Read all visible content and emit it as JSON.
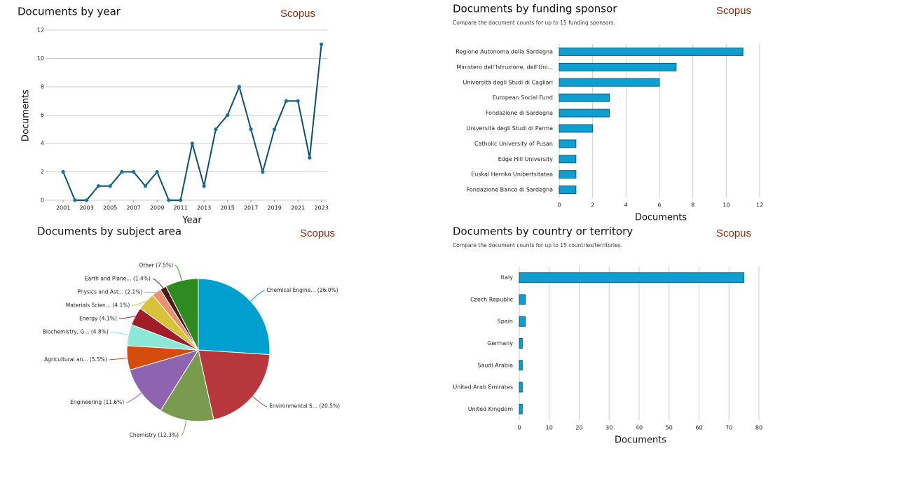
{
  "chart_data": [
    {
      "type": "line",
      "title": "Documents by year",
      "brand": "Scopus",
      "x": [
        2001,
        2002,
        2003,
        2004,
        2005,
        2006,
        2007,
        2008,
        2009,
        2010,
        2011,
        2012,
        2013,
        2014,
        2015,
        2016,
        2017,
        2018,
        2019,
        2020,
        2021,
        2022,
        2023
      ],
      "values": [
        2,
        0,
        0,
        1,
        1,
        2,
        2,
        1,
        2,
        0,
        0,
        4,
        1,
        5,
        6,
        8,
        5,
        2,
        5,
        7,
        7,
        3,
        11
      ],
      "color": "#0b4f72",
      "xlabel": "Year",
      "ylabel": "Documents",
      "xlim": [
        1999.5,
        2023.5
      ],
      "xticks": [
        2001,
        2003,
        2005,
        2007,
        2009,
        2011,
        2013,
        2015,
        2017,
        2019,
        2021,
        2023
      ],
      "ylim": [
        0,
        12
      ],
      "yticks": [
        0,
        2,
        4,
        6,
        8,
        10,
        12
      ],
      "grid": true
    },
    {
      "type": "hbar",
      "title": "Documents by funding sponsor",
      "brand": "Scopus",
      "subtitle": "Compare the document counts for up to 15 funding sponsors.",
      "categories": [
        "Regione Autonoma della Sardegna",
        "Ministero dell'Istruzione, dell'Uni...",
        "Università degli Studi di Cagliari",
        "European Social Fund",
        "Fondazione di Sardegna",
        "Università degli Studi di Parma",
        "Catholic University of Pusan",
        "Edge Hill University",
        "Euskal Herriko Unibertsitatea",
        "Fondazione Banco di Sardegna"
      ],
      "values": [
        11,
        7,
        6,
        3,
        3,
        2,
        1,
        1,
        1,
        1
      ],
      "color": "#0e9fd0",
      "xlabel": "Documents",
      "xlim": [
        0,
        12
      ],
      "xticks": [
        0,
        2,
        4,
        6,
        8,
        10,
        12
      ],
      "grid": true
    },
    {
      "type": "pie",
      "title": "Documents by subject area",
      "brand": "Scopus",
      "categories": [
        "Chemical Engine...",
        "Environmental S...",
        "Chemistry",
        "Engineering",
        "Agricultural an...",
        "Biochemistry, G...",
        "Energy",
        "Materials Scien...",
        "Physics and Ast...",
        "Earth and Plane...",
        "Other"
      ],
      "values": [
        26.0,
        20.5,
        12.3,
        11.6,
        5.5,
        4.8,
        4.1,
        4.1,
        2.1,
        1.4,
        7.5
      ],
      "value_labels": [
        "(26.0%)",
        "(20.5%)",
        "(12.3%)",
        "(11.6%)",
        "(5.5%)",
        "(4.8%)",
        "(4.1%)",
        "(4.1%)",
        "(2.1%)",
        "(1.4%)",
        "(7.5%)"
      ],
      "colors": [
        "#009fcf",
        "#b8373c",
        "#7a9a4e",
        "#8e63b0",
        "#d44c0e",
        "#8ce8d6",
        "#a01e2a",
        "#d8c23a",
        "#e89070",
        "#4a1a1a",
        "#2e8b22"
      ]
    },
    {
      "type": "hbar",
      "title": "Documents by country or territory",
      "brand": "Scopus",
      "subtitle": "Compare the document counts for up to 15 countries/territories.",
      "categories": [
        "Italy",
        "Czech Republic",
        "Spain",
        "Germany",
        "Saudi Arabia",
        "United Arab Emirates",
        "United Kingdom"
      ],
      "values": [
        75,
        2,
        2,
        1,
        1,
        1,
        1
      ],
      "color": "#0e9fd0",
      "xlabel": "Documents",
      "xlim": [
        0,
        80
      ],
      "xticks": [
        0,
        10,
        20,
        30,
        40,
        50,
        60,
        70,
        80
      ],
      "grid": true
    }
  ]
}
